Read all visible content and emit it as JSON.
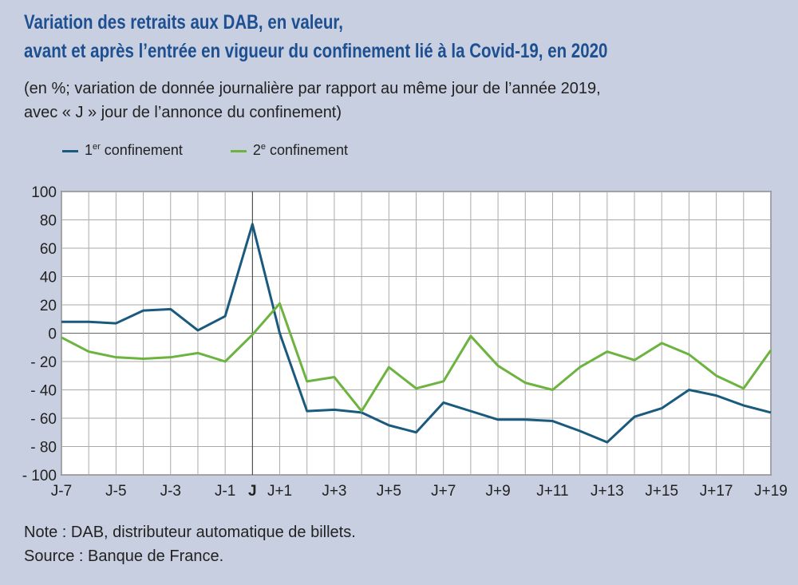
{
  "title": [
    "Variation des retraits aux DAB, en valeur,",
    "avant et après l’entrée en vigueur du confinement lié à la Covid-19, en 2020"
  ],
  "subtitle": [
    "(en %; variation de donnée journalière par rapport au même jour de l’année 2019,",
    "avec « J » jour de l’annonce du confinement)"
  ],
  "notes": [
    "Note : DAB, distributeur automatique de billets.",
    "Source : Banque de France."
  ],
  "chart_data": {
    "type": "line",
    "x": [
      "J-7",
      "J-6",
      "J-5",
      "J-4",
      "J-3",
      "J-2",
      "J-1",
      "J",
      "J+1",
      "J+2",
      "J+3",
      "J+4",
      "J+5",
      "J+6",
      "J+7",
      "J+8",
      "J+9",
      "J+10",
      "J+11",
      "J+12",
      "J+13",
      "J+14",
      "J+15",
      "J+16",
      "J+17",
      "J+18",
      "J+19"
    ],
    "xtick_labels": [
      "J-7",
      "J-5",
      "J-3",
      "J-1",
      "J",
      "J+1",
      "J+3",
      "J+5",
      "J+7",
      "J+9",
      "J+11",
      "J+13",
      "J+15",
      "J+17",
      "J+19"
    ],
    "ylim": [
      -100,
      100
    ],
    "yticks": [
      100,
      80,
      60,
      40,
      20,
      0,
      -20,
      -40,
      -60,
      -80,
      -100
    ],
    "grid": true,
    "legend_position": "top-left",
    "series": [
      {
        "name": "1er confinement",
        "name_base": "1",
        "name_sup": "er",
        "name_rest": " confinement",
        "color": "#1a5a7e",
        "values": [
          8,
          8,
          7,
          16,
          17,
          2,
          12,
          77,
          0,
          -55,
          -54,
          -56,
          -65,
          -70,
          -49,
          -55,
          -61,
          -61,
          -62,
          -69,
          -77,
          -59,
          -53,
          -40,
          -44,
          -51,
          -56
        ]
      },
      {
        "name": "2e confinement",
        "name_base": "2",
        "name_sup": "e",
        "name_rest": " confinement",
        "color": "#6cb33f",
        "values": [
          -3,
          -13,
          -17,
          -18,
          -17,
          -14,
          -20,
          -1,
          21,
          -34,
          -31,
          -55,
          -24,
          -39,
          -34,
          -2,
          -23,
          -35,
          -40,
          -24,
          -13,
          -19,
          -7,
          -15,
          -30,
          -39,
          -12
        ]
      }
    ]
  }
}
